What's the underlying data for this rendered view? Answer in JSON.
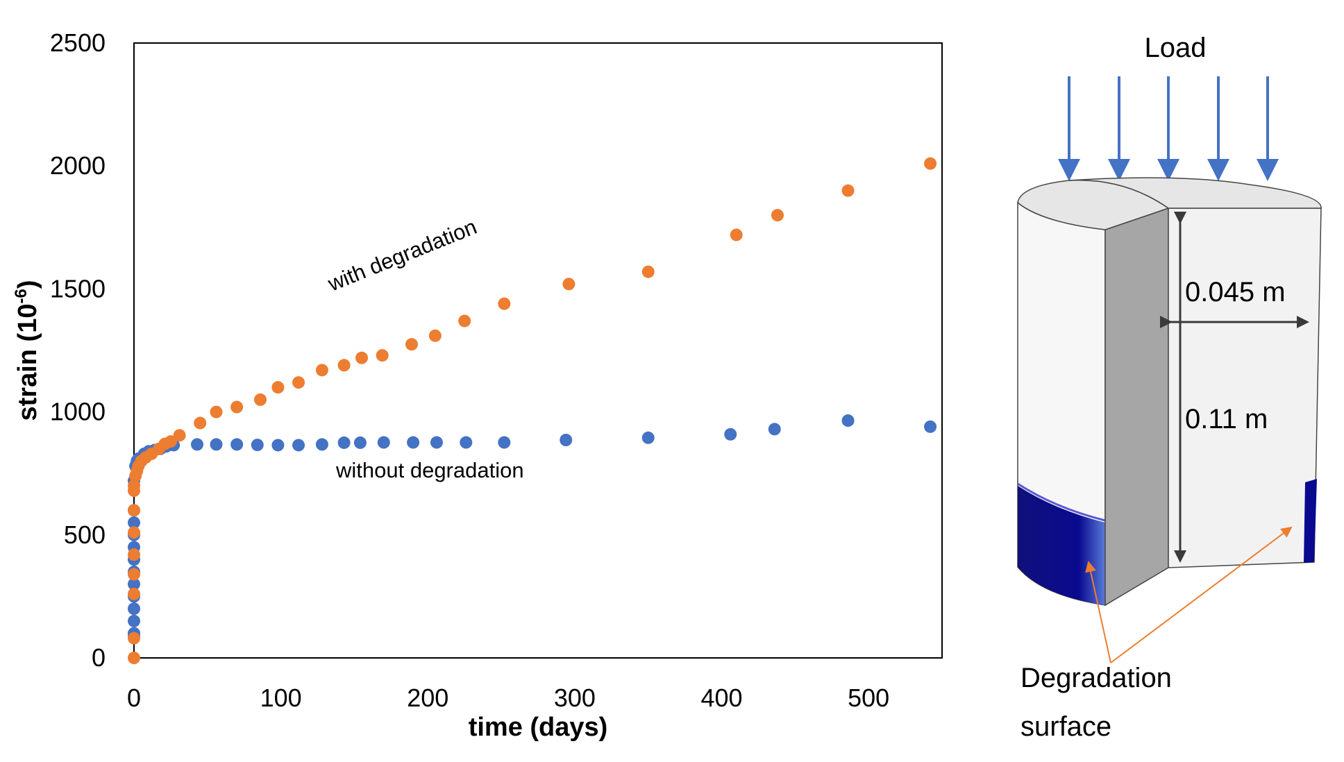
{
  "chart_data": {
    "type": "scatter",
    "title": "",
    "xlabel": "time (days)",
    "ylabel_main": "strain (10",
    "ylabel_exp": "-6",
    "ylabel_close": ")",
    "xlim": [
      0,
      550
    ],
    "ylim": [
      0,
      2500
    ],
    "xticks": [
      0,
      100,
      200,
      300,
      400,
      500
    ],
    "yticks": [
      0,
      500,
      1000,
      1500,
      2000,
      2500
    ],
    "grid": false,
    "annotations": {
      "with": "with degradation",
      "without": "without degradation"
    },
    "series": [
      {
        "color": "#4472C4",
        "x": [
          0,
          0,
          0,
          0,
          0,
          0,
          0,
          0,
          0,
          0,
          0,
          0,
          0,
          1,
          2,
          3,
          5,
          7,
          10,
          14,
          18,
          22,
          27,
          43,
          56,
          70,
          84,
          98,
          112,
          128,
          143,
          154,
          170,
          190,
          206,
          226,
          252,
          294,
          350,
          406,
          436,
          486,
          542
        ],
        "y": [
          90,
          100,
          150,
          200,
          250,
          300,
          350,
          400,
          450,
          500,
          550,
          600,
          720,
          780,
          800,
          810,
          815,
          830,
          840,
          845,
          850,
          860,
          865,
          868,
          868,
          868,
          866,
          865,
          865,
          868,
          875,
          875,
          876,
          876,
          876,
          876,
          876,
          886,
          895,
          909,
          930,
          965,
          940
        ]
      },
      {
        "color": "#ED7D31",
        "x": [
          0,
          0,
          0,
          0,
          0,
          0,
          0,
          0,
          0,
          1,
          2,
          3,
          5,
          8,
          12,
          17,
          21,
          25,
          31,
          45,
          56,
          70,
          86,
          98,
          112,
          128,
          143,
          155,
          169,
          189,
          205,
          225,
          252,
          296,
          350,
          410,
          438,
          486,
          542
        ],
        "y": [
          0,
          80,
          260,
          340,
          420,
          510,
          600,
          680,
          700,
          740,
          760,
          780,
          800,
          815,
          830,
          850,
          870,
          880,
          905,
          955,
          1000,
          1020,
          1050,
          1100,
          1120,
          1170,
          1190,
          1220,
          1230,
          1275,
          1310,
          1370,
          1440,
          1520,
          1570,
          1720,
          1800,
          1900,
          2010
        ]
      }
    ]
  },
  "diagram": {
    "load_label": "Load",
    "radius_label": "0.045 m",
    "height_label": "0.11 m",
    "degradation_line1": "Degradation",
    "degradation_line2": "surface"
  }
}
